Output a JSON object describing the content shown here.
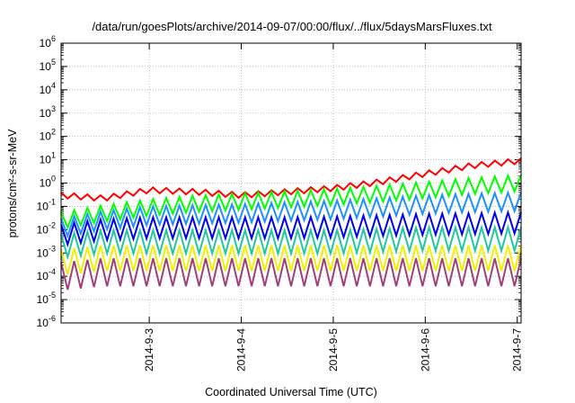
{
  "chart_data": {
    "type": "line",
    "title": "/data/run/goesPlots/archive/2014-09-07/00:00/flux/../flux/5daysMarsFluxes.txt",
    "xlabel": "Coordinated Universal Time (UTC)",
    "ylabel": "protons/cm²-s-sr-MeV",
    "yscale": "log",
    "ylim": [
      1e-06,
      1000000.0
    ],
    "xlim": [
      "2014-09-02T01:00",
      "2014-09-07T01:00"
    ],
    "xticks": [
      "2014-9-3",
      "2014-9-4",
      "2014-9-5",
      "2014-9-6",
      "2014-9-7"
    ],
    "yticks": [
      {
        "base": "10",
        "exp": "6"
      },
      {
        "base": "10",
        "exp": "5"
      },
      {
        "base": "10",
        "exp": "4"
      },
      {
        "base": "10",
        "exp": "3"
      },
      {
        "base": "10",
        "exp": "2"
      },
      {
        "base": "10",
        "exp": "1"
      },
      {
        "base": "10",
        "exp": "0"
      },
      {
        "base": "10",
        "exp": "-1"
      },
      {
        "base": "10",
        "exp": "-2"
      },
      {
        "base": "10",
        "exp": "-3"
      },
      {
        "base": "10",
        "exp": "-4"
      },
      {
        "base": "10",
        "exp": "-5"
      },
      {
        "base": "10",
        "exp": "-6"
      }
    ],
    "grid": true,
    "legend": "none",
    "sawtooth_points_per_day": 14,
    "series": [
      {
        "color": "#ff0000",
        "values": [
          [
            "2014-09-02T01:00",
            0.3
          ],
          [
            "2014-09-02T12:00",
            0.22
          ],
          [
            "2014-09-03T00:00",
            0.5
          ],
          [
            "2014-09-03T12:00",
            0.42
          ],
          [
            "2014-09-04T00:00",
            0.3
          ],
          [
            "2014-09-04T12:00",
            0.42
          ],
          [
            "2014-09-05T00:00",
            0.6
          ],
          [
            "2014-09-05T12:00",
            1.1
          ],
          [
            "2014-09-06T00:00",
            2.5
          ],
          [
            "2014-09-06T12:00",
            5.5
          ],
          [
            "2014-09-07T01:00",
            9.0
          ]
        ]
      },
      {
        "color": "#00ff00",
        "values": [
          [
            "2014-09-02T01:00",
            0.025
          ],
          [
            "2014-09-02T12:00",
            0.05
          ],
          [
            "2014-09-03T00:00",
            0.09
          ],
          [
            "2014-09-03T12:00",
            0.13
          ],
          [
            "2014-09-04T00:00",
            0.16
          ],
          [
            "2014-09-04T12:00",
            0.2
          ],
          [
            "2014-09-05T00:00",
            0.25
          ],
          [
            "2014-09-05T12:00",
            0.35
          ],
          [
            "2014-09-06T00:00",
            0.5
          ],
          [
            "2014-09-06T12:00",
            0.75
          ],
          [
            "2014-09-07T01:00",
            1.0
          ]
        ]
      },
      {
        "color": "#1e90ff",
        "values": [
          [
            "2014-09-02T01:00",
            0.012
          ],
          [
            "2014-09-02T12:00",
            0.025
          ],
          [
            "2014-09-03T00:00",
            0.04
          ],
          [
            "2014-09-03T12:00",
            0.045
          ],
          [
            "2014-09-04T00:00",
            0.05
          ],
          [
            "2014-09-04T12:00",
            0.06
          ],
          [
            "2014-09-05T00:00",
            0.07
          ],
          [
            "2014-09-05T12:00",
            0.09
          ],
          [
            "2014-09-06T00:00",
            0.12
          ],
          [
            "2014-09-06T12:00",
            0.14
          ],
          [
            "2014-09-07T01:00",
            0.16
          ]
        ]
      },
      {
        "color": "#0000ee",
        "values": [
          [
            "2014-09-02T01:00",
            0.006
          ],
          [
            "2014-09-02T12:00",
            0.01
          ],
          [
            "2014-09-03T00:00",
            0.012
          ],
          [
            "2014-09-03T12:00",
            0.012
          ],
          [
            "2014-09-04T00:00",
            0.012
          ],
          [
            "2014-09-04T12:00",
            0.012
          ],
          [
            "2014-09-05T00:00",
            0.013
          ],
          [
            "2014-09-05T12:00",
            0.015
          ],
          [
            "2014-09-06T00:00",
            0.017
          ],
          [
            "2014-09-06T12:00",
            0.018
          ],
          [
            "2014-09-07T01:00",
            0.02
          ]
        ]
      },
      {
        "color": "#20c8a0",
        "values": [
          [
            "2014-09-02T01:00",
            0.002
          ],
          [
            "2014-09-02T12:00",
            0.003
          ],
          [
            "2014-09-03T00:00",
            0.003
          ],
          [
            "2014-09-03T12:00",
            0.003
          ],
          [
            "2014-09-04T00:00",
            0.003
          ],
          [
            "2014-09-04T12:00",
            0.003
          ],
          [
            "2014-09-05T00:00",
            0.003
          ],
          [
            "2014-09-05T12:00",
            0.0035
          ],
          [
            "2014-09-06T00:00",
            0.004
          ],
          [
            "2014-09-06T12:00",
            0.004
          ],
          [
            "2014-09-07T01:00",
            0.004
          ]
        ]
      },
      {
        "color": "#f0f000",
        "values": [
          [
            "2014-09-02T01:00",
            0.0004
          ],
          [
            "2014-09-02T12:00",
            0.0006
          ],
          [
            "2014-09-03T00:00",
            0.0006
          ],
          [
            "2014-09-03T12:00",
            0.0006
          ],
          [
            "2014-09-04T00:00",
            0.0006
          ],
          [
            "2014-09-04T12:00",
            0.0006
          ],
          [
            "2014-09-05T00:00",
            0.0006
          ],
          [
            "2014-09-05T12:00",
            0.0006
          ],
          [
            "2014-09-06T00:00",
            0.0006
          ],
          [
            "2014-09-06T12:00",
            0.0006
          ],
          [
            "2014-09-07T01:00",
            0.0006
          ]
        ]
      },
      {
        "color": "#a0407a",
        "values": [
          [
            "2014-09-02T01:00",
            0.0001
          ],
          [
            "2014-09-02T12:00",
            0.00015
          ],
          [
            "2014-09-03T00:00",
            0.00015
          ],
          [
            "2014-09-03T12:00",
            0.00015
          ],
          [
            "2014-09-04T00:00",
            0.00015
          ],
          [
            "2014-09-04T12:00",
            0.00015
          ],
          [
            "2014-09-05T00:00",
            0.00015
          ],
          [
            "2014-09-05T12:00",
            0.00015
          ],
          [
            "2014-09-06T00:00",
            0.00015
          ],
          [
            "2014-09-06T12:00",
            0.00015
          ],
          [
            "2014-09-07T01:00",
            0.00015
          ]
        ]
      }
    ]
  }
}
